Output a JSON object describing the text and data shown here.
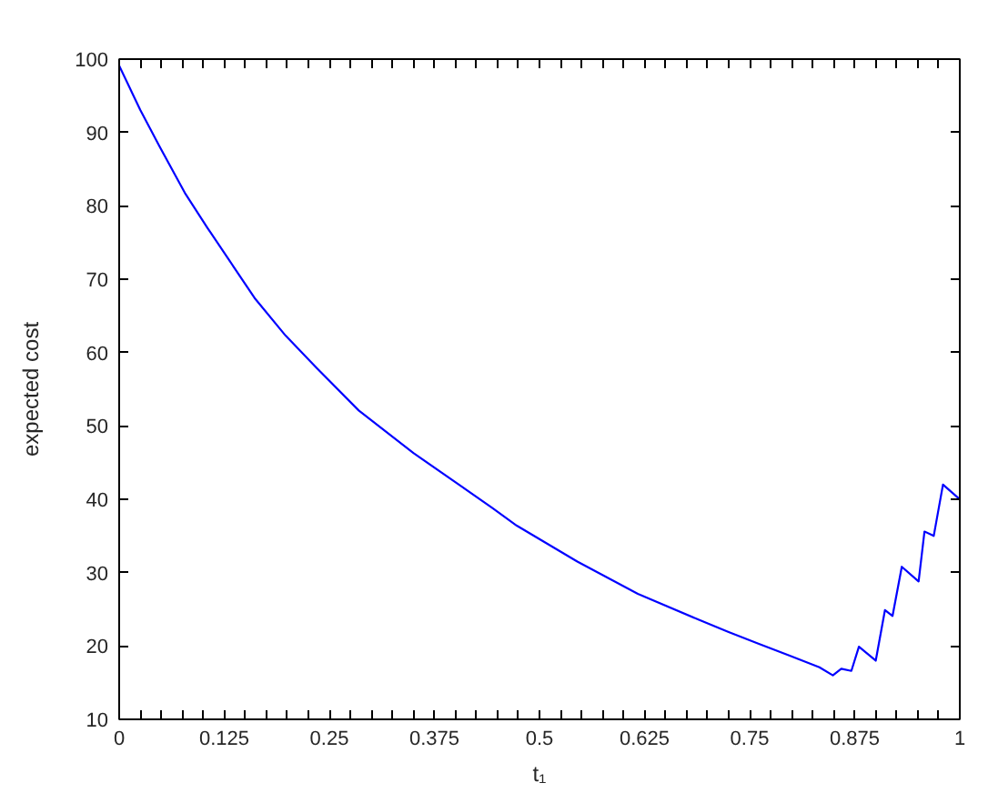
{
  "chart_data": {
    "type": "line",
    "xlabel": "t₁",
    "ylabel": "expected cost",
    "x": [
      0,
      0.025,
      0.048,
      0.079,
      0.105,
      0.132,
      0.162,
      0.198,
      0.234,
      0.285,
      0.35,
      0.408,
      0.444,
      0.473,
      0.545,
      0.617,
      0.689,
      0.725,
      0.761,
      0.797,
      0.833,
      0.849,
      0.859,
      0.871,
      0.88,
      0.9,
      0.911,
      0.92,
      0.931,
      0.951,
      0.958,
      0.969,
      0.98,
      0.997,
      1
    ],
    "series": [
      {
        "color": "#0000ff",
        "values": [
          99.1,
          93.1,
          88.1,
          81.6,
          77.0,
          72.4,
          67.3,
          62.3,
          58.0,
          52.1,
          46.3,
          41.7,
          38.8,
          36.4,
          31.5,
          27.1,
          23.6,
          21.9,
          20.3,
          18.7,
          17.1,
          16.0,
          16.9,
          16.6,
          19.9,
          18.0,
          24.9,
          24.1,
          30.8,
          28.8,
          35.6,
          35.0,
          42.0,
          40.3,
          40.0
        ]
      }
    ],
    "xlim": [
      0,
      1
    ],
    "ylim": [
      10,
      100
    ],
    "xticks": [
      0,
      {
        "value": 0.025,
        "label": null
      },
      {
        "value": 0.05,
        "label": null
      },
      {
        "value": 0.075,
        "label": null
      },
      {
        "value": 0.1,
        "label": null
      },
      0.125,
      {
        "value": 0.15,
        "label": null
      },
      {
        "value": 0.175,
        "label": null
      },
      {
        "value": 0.2,
        "label": null
      },
      {
        "value": 0.225,
        "label": null
      },
      0.25,
      {
        "value": 0.275,
        "label": null
      },
      {
        "value": 0.3,
        "label": null
      },
      {
        "value": 0.325,
        "label": null
      },
      {
        "value": 0.35,
        "label": null
      },
      0.375,
      {
        "value": 0.4,
        "label": null
      },
      {
        "value": 0.425,
        "label": null
      },
      {
        "value": 0.45,
        "label": null
      },
      {
        "value": 0.475,
        "label": null
      },
      0.5,
      {
        "value": 0.525,
        "label": null
      },
      {
        "value": 0.55,
        "label": null
      },
      {
        "value": 0.575,
        "label": null
      },
      {
        "value": 0.6,
        "label": null
      },
      0.625,
      {
        "value": 0.65,
        "label": null
      },
      {
        "value": 0.675,
        "label": null
      },
      {
        "value": 0.7,
        "label": null
      },
      {
        "value": 0.725,
        "label": null
      },
      0.75,
      {
        "value": 0.775,
        "label": null
      },
      {
        "value": 0.8,
        "label": null
      },
      {
        "value": 0.825,
        "label": null
      },
      {
        "value": 0.85,
        "label": null
      },
      0.875,
      {
        "value": 0.9,
        "label": null
      },
      {
        "value": 0.925,
        "label": null
      },
      {
        "value": 0.95,
        "label": null
      },
      {
        "value": 0.975,
        "label": null
      },
      1
    ],
    "yticks": [
      10,
      20,
      30,
      40,
      50,
      60,
      70,
      80,
      90,
      100
    ],
    "grid": false,
    "marker": "none",
    "line_style": "solid"
  }
}
